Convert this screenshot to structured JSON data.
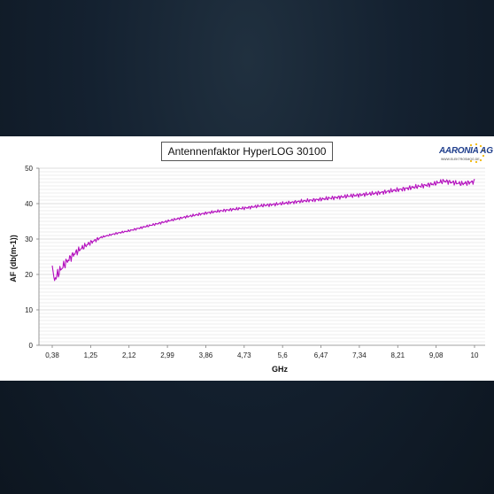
{
  "chart_data": {
    "type": "line",
    "title": "Antennenfaktor HyperLOG 30100",
    "xlabel": "GHz",
    "ylabel": "AF (db(m-1))",
    "x_tick_labels": [
      "0,38",
      "1,25",
      "2,12",
      "2,99",
      "3,86",
      "4,73",
      "5,6",
      "6,47",
      "7,34",
      "8,21",
      "9,08",
      "10"
    ],
    "xlim": [
      0.38,
      10
    ],
    "ylim": [
      0,
      50
    ],
    "y_ticks": [
      0,
      10,
      20,
      30,
      40,
      50
    ],
    "grid": "horizontal",
    "line_color": "#b40fbe",
    "series": [
      {
        "x": [
          0.38,
          0.4,
          0.45,
          0.55,
          0.7,
          0.85,
          1.0,
          1.25,
          1.5,
          1.8,
          2.12,
          2.5,
          2.99,
          3.4,
          3.86,
          4.3,
          4.73,
          5.2,
          5.6,
          6.0,
          6.47,
          6.9,
          7.34,
          7.8,
          8.21,
          8.65,
          9.08,
          9.3,
          9.5,
          9.7,
          9.9,
          10.0
        ],
        "values": [
          22.5,
          17.8,
          19.0,
          21.0,
          23.5,
          25.5,
          27.0,
          29.0,
          30.5,
          31.5,
          32.3,
          33.5,
          35.0,
          36.2,
          37.3,
          38.1,
          38.7,
          39.5,
          40.0,
          40.6,
          41.2,
          41.8,
          42.4,
          43.0,
          43.8,
          44.7,
          45.6,
          46.4,
          46.0,
          45.6,
          46.0,
          46.3
        ]
      }
    ]
  },
  "logo": {
    "name": "AARONIA AG",
    "tagline": "WWW.ELEKTROSMOG.DE"
  }
}
